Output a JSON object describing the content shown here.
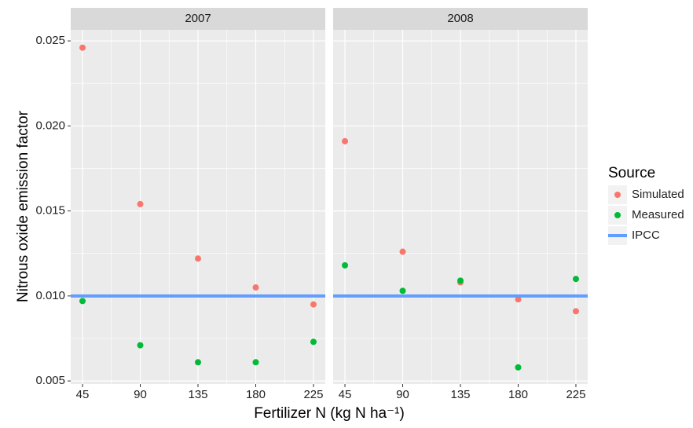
{
  "chart_data": {
    "type": "scatter",
    "y_label": "Nitrous oxide emission factor",
    "x_label": "Fertilizer N (kg N ha⁻¹)",
    "legend_title": "Source",
    "x": [
      45,
      90,
      135,
      180,
      225
    ],
    "xlim": [
      35.8,
      234.2
    ],
    "xticks": [
      45,
      90,
      135,
      180,
      225
    ],
    "ylim": [
      0.00482,
      0.02565
    ],
    "yticks": [
      0.005,
      {
        "value": 0.01,
        "label": "0.010"
      },
      0.015,
      {
        "value": 0.02,
        "label": "0.020"
      },
      0.025
    ],
    "grid": true,
    "series": [
      {
        "name": "Simulated",
        "color": "#f8766d"
      },
      {
        "name": "Measured",
        "color": "#00ba38"
      },
      {
        "name": "IPCC",
        "color": "#619cff",
        "style": "hline"
      }
    ],
    "facets": [
      {
        "title": "2007",
        "series": [
          {
            "values": [
              0.0246,
              0.0154,
              0.0122,
              0.0105,
              0.0095
            ]
          },
          {
            "values": [
              0.0097,
              0.0071,
              0.0061,
              0.0061,
              0.0073
            ]
          },
          {
            "values": [
              0.01
            ]
          }
        ]
      },
      {
        "title": "2008",
        "series": [
          {
            "values": [
              0.0191,
              0.0126,
              0.0108,
              0.0098,
              0.0091
            ]
          },
          {
            "values": [
              0.0118,
              0.0103,
              0.0109,
              0.0058,
              0.011
            ]
          },
          {
            "values": [
              0.01
            ]
          }
        ]
      }
    ]
  }
}
